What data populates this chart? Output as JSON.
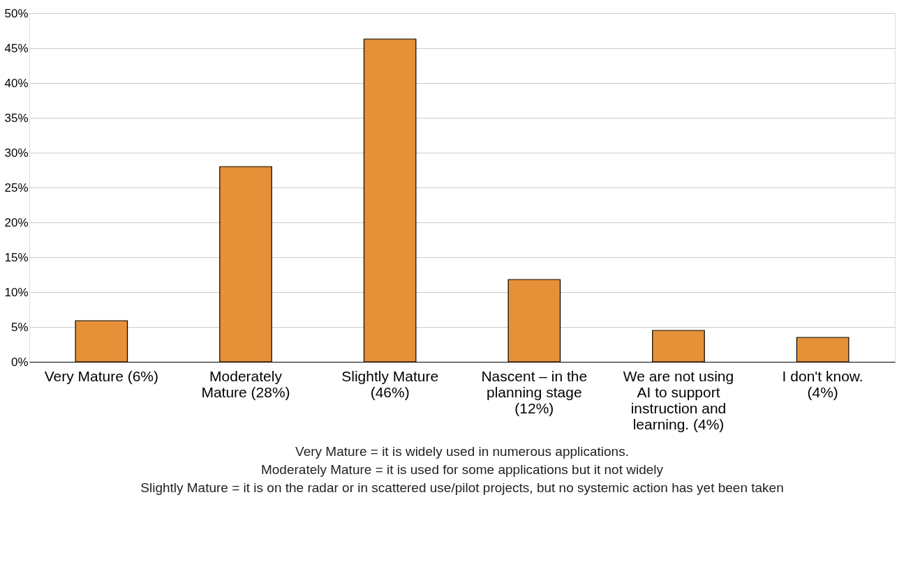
{
  "chart_data": {
    "type": "bar",
    "categories": [
      "Very Mature (6%)",
      "Moderately Mature (28%)",
      "Slightly Mature (46%)",
      "Nascent – in the planning stage (12%)",
      "We are not using AI to support instruction and learning. (4%)",
      "I don't know. (4%)"
    ],
    "values": [
      5.9,
      28.0,
      46.3,
      11.8,
      4.5,
      3.5
    ],
    "color": "#e69138",
    "ylim": [
      0,
      50
    ],
    "yticks": [
      {
        "value": 0,
        "label": "0%"
      },
      {
        "value": 5,
        "label": "5%"
      },
      {
        "value": 10,
        "label": "10%"
      },
      {
        "value": 15,
        "label": "15%"
      },
      {
        "value": 20,
        "label": "20%"
      },
      {
        "value": 25,
        "label": "25%"
      },
      {
        "value": 30,
        "label": "30%"
      },
      {
        "value": 35,
        "label": "35%"
      },
      {
        "value": 40,
        "label": "40%"
      },
      {
        "value": 45,
        "label": "45%"
      },
      {
        "value": 50,
        "label": "50%"
      }
    ],
    "grid": "y",
    "annotations": [
      "Very Mature = it is widely used in numerous applications.",
      "Moderately Mature = it is used for some applications but it not widely",
      "Slightly Mature = it is on the radar or in scattered use/pilot projects, but no systemic action has yet been taken"
    ]
  }
}
